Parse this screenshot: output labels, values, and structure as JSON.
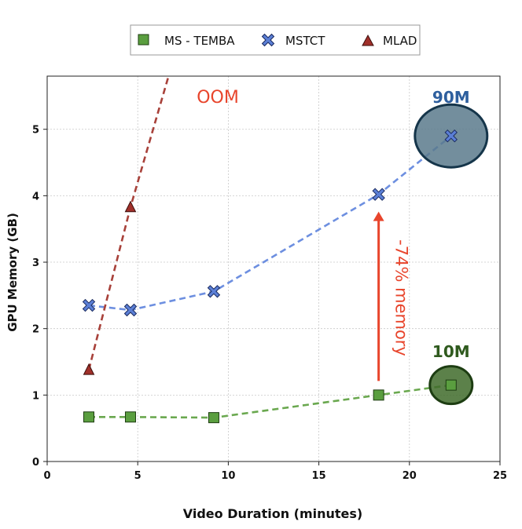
{
  "chart_data": {
    "type": "line",
    "title": "",
    "xlabel": "Video Duration (minutes)",
    "ylabel": "GPU Memory (GB)",
    "xlim": [
      0,
      25
    ],
    "ylim": [
      0,
      5.8
    ],
    "xticks": [
      0,
      5,
      10,
      15,
      20,
      25
    ],
    "yticks": [
      0,
      1,
      2,
      3,
      4,
      5
    ],
    "grid": true,
    "legend_position": "top-center",
    "series": [
      {
        "name": "MS - TEMBA",
        "color": "#5a9e3f",
        "marker": "square",
        "x": [
          2.3,
          4.6,
          9.2,
          18.3,
          22.3
        ],
        "y": [
          0.67,
          0.67,
          0.66,
          1.0,
          1.15
        ]
      },
      {
        "name": "MSTCT",
        "color": "#5b7fd6",
        "marker": "x",
        "x": [
          2.3,
          4.6,
          9.2,
          18.3,
          22.3
        ],
        "y": [
          2.35,
          2.28,
          2.56,
          4.02,
          4.9
        ]
      },
      {
        "name": "MLAD",
        "color": "#a0302a",
        "marker": "triangle",
        "x": [
          2.3,
          4.6
        ],
        "y": [
          1.38,
          3.83
        ],
        "extrapolate_to": [
          6.7,
          5.8
        ]
      }
    ],
    "annotations": {
      "oom": "OOM",
      "big_label": "90M",
      "small_label": "10M",
      "reduction": "-74% memory"
    }
  },
  "colors": {
    "green_line": "#6aa84f",
    "blue_line": "#6d8fe0",
    "red_line": "#a8413a",
    "oom_text": "#e8452c",
    "arrow": "#e8452c",
    "big_circle_fill": "#5b7a8c",
    "big_circle_stroke": "#15354a",
    "big_label": "#2e5f9e",
    "small_circle_fill": "#3f6b2a",
    "small_circle_stroke": "#1d3d12",
    "small_label": "#2f5a1e"
  }
}
